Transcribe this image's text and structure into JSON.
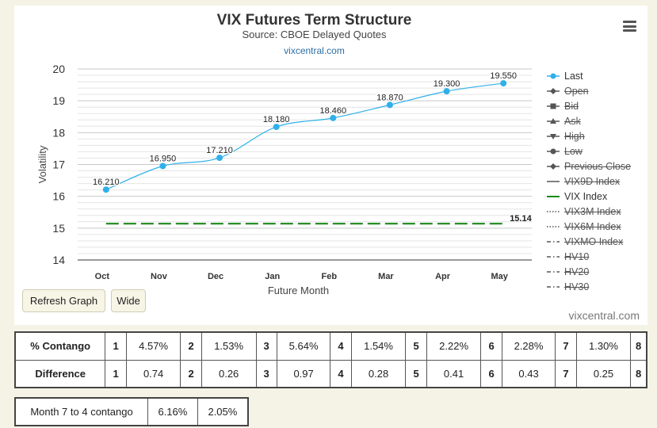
{
  "chart": {
    "title": "VIX Futures Term Structure",
    "subtitle": "Source: CBOE Delayed Quotes",
    "link_text": "vixcentral.com",
    "credits": "vixcentral.com",
    "menu_icon": "hamburger-menu-icon"
  },
  "buttons": {
    "refresh": "Refresh Graph",
    "wide": "Wide"
  },
  "chart_data": {
    "type": "line",
    "xlabel": "Future Month",
    "ylabel": "Volatility",
    "categories": [
      "Oct",
      "Nov",
      "Dec",
      "Jan",
      "Feb",
      "Mar",
      "Apr",
      "May"
    ],
    "ylim": [
      14,
      20
    ],
    "yticks": [
      14,
      15,
      16,
      17,
      18,
      19,
      20
    ],
    "grid": true,
    "legend_position": "right",
    "series": [
      {
        "name": "Last",
        "values": [
          16.21,
          16.95,
          17.21,
          18.18,
          18.46,
          18.87,
          19.3,
          19.55
        ],
        "labels": [
          "16.210",
          "16.950",
          "17.210",
          "18.180",
          "18.460",
          "18.870",
          "19.300",
          "19.550"
        ],
        "color": "#2fb0ea",
        "style": "spline"
      },
      {
        "name": "VIX Index",
        "value": 15.14,
        "label": "15.14",
        "color": "#1a8a1a",
        "style": "dashed"
      }
    ],
    "legend": [
      {
        "name": "Last",
        "symbol": "circle",
        "enabled": true
      },
      {
        "name": "Open",
        "symbol": "diamond",
        "enabled": false
      },
      {
        "name": "Bid",
        "symbol": "square",
        "enabled": false
      },
      {
        "name": "Ask",
        "symbol": "triangle",
        "enabled": false
      },
      {
        "name": "High",
        "symbol": "triangle-down",
        "enabled": false
      },
      {
        "name": "Low",
        "symbol": "circle",
        "enabled": false
      },
      {
        "name": "Previous Close",
        "symbol": "diamond",
        "enabled": false
      },
      {
        "name": "VIX9D Index",
        "symbol": "solid",
        "enabled": false
      },
      {
        "name": "VIX Index",
        "symbol": "solid-green",
        "enabled": true
      },
      {
        "name": "VIX3M Index",
        "symbol": "dotted",
        "enabled": false
      },
      {
        "name": "VIX6M Index",
        "symbol": "dotted",
        "enabled": false
      },
      {
        "name": "VIXMO Index",
        "symbol": "dashdot",
        "enabled": false
      },
      {
        "name": "HV10",
        "symbol": "dashdot",
        "enabled": false
      },
      {
        "name": "HV20",
        "symbol": "dashdot",
        "enabled": false
      },
      {
        "name": "HV30",
        "symbol": "dashdot",
        "enabled": false
      }
    ]
  },
  "contango_table": {
    "rows": [
      {
        "label": "% Contango",
        "cells": [
          "1",
          "4.57%",
          "2",
          "1.53%",
          "3",
          "5.64%",
          "4",
          "1.54%",
          "5",
          "2.22%",
          "6",
          "2.28%",
          "7",
          "1.30%",
          "8"
        ]
      },
      {
        "label": "Difference",
        "cells": [
          "1",
          "0.74",
          "2",
          "0.26",
          "3",
          "0.97",
          "4",
          "0.28",
          "5",
          "0.41",
          "6",
          "0.43",
          "7",
          "0.25",
          "8"
        ]
      }
    ]
  },
  "month_table": {
    "label": "Month 7 to 4 contango",
    "values": [
      "6.16%",
      "2.05%"
    ]
  }
}
